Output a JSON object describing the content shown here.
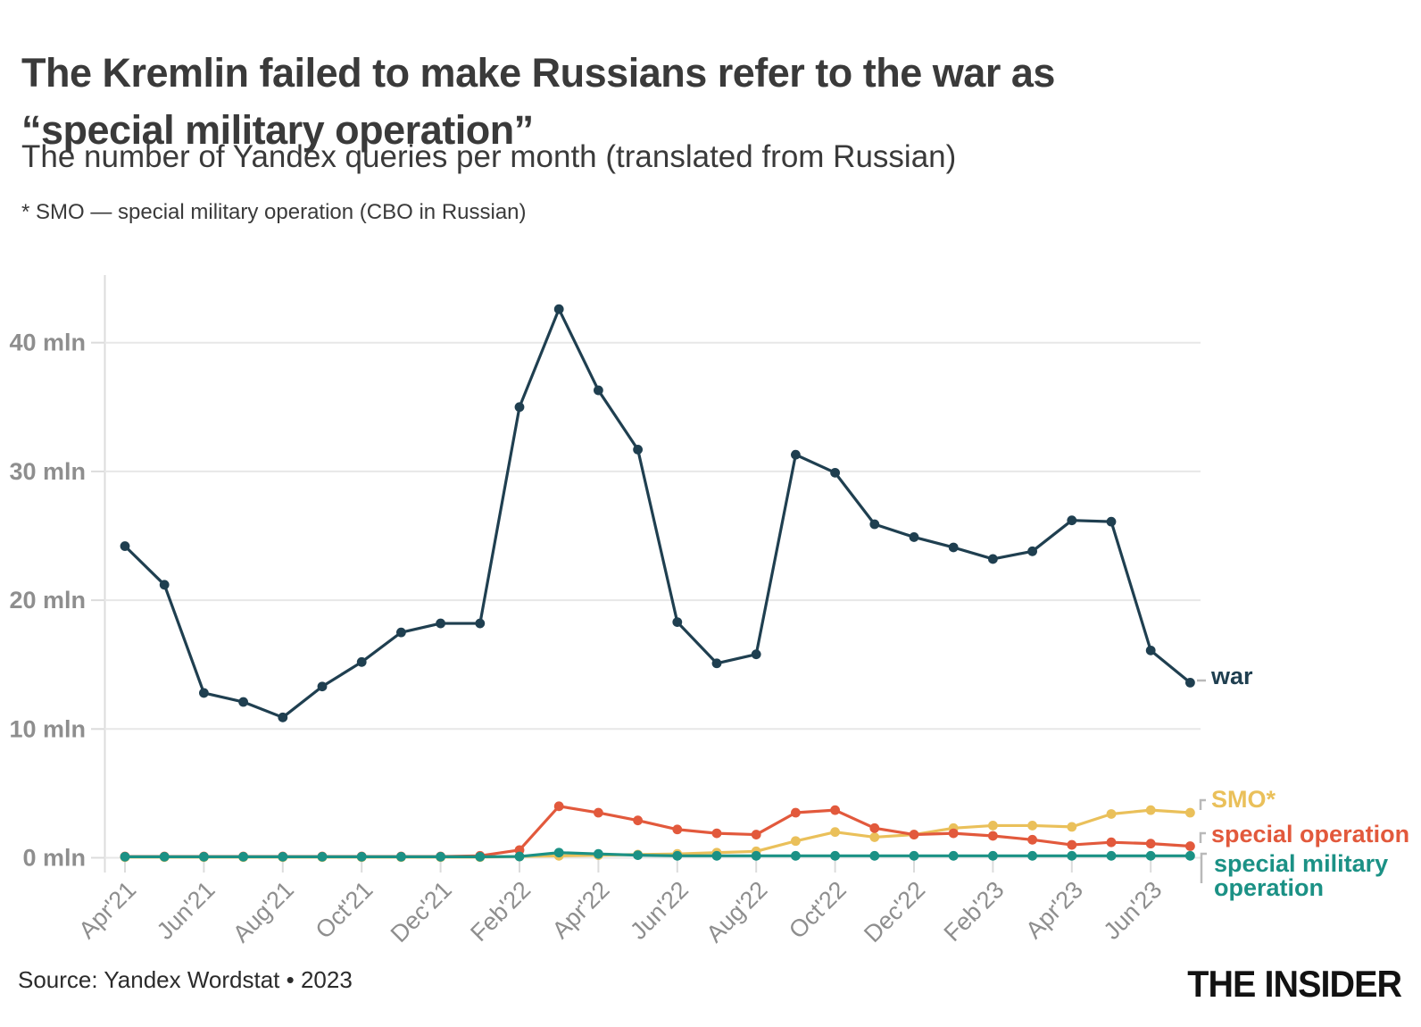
{
  "header": {
    "title_line1": "The Kremlin failed to make Russians refer to the war as",
    "title_line2": "“special military operation”",
    "subtitle": "The number of Yandex queries per month (translated from Russian)",
    "footnote": "* SMO — special military operation (CBO in Russian)"
  },
  "footer": {
    "source": "Source: Yandex Wordstat • 2023",
    "logo": "THE INSIDER"
  },
  "chart_data": {
    "type": "line",
    "x": [
      "Apr'21",
      "May'21",
      "Jun'21",
      "Jul'21",
      "Aug'21",
      "Sep'21",
      "Oct'21",
      "Nov'21",
      "Dec'21",
      "Jan'22",
      "Feb'22",
      "Mar'22",
      "Apr'22",
      "May'22",
      "Jun'22",
      "Jul'22",
      "Aug'22",
      "Sep'22",
      "Oct'22",
      "Nov'22",
      "Dec'22",
      "Jan'23",
      "Feb'23",
      "Mar'23",
      "Apr'23",
      "May'23",
      "Jun'23",
      "Jul'23"
    ],
    "x_tick_labels": [
      "Apr'21",
      "Jun'21",
      "Aug'21",
      "Oct'21",
      "Dec'21",
      "Feb'22",
      "Apr'22",
      "Jun'22",
      "Aug'22",
      "Oct'22",
      "Dec'22",
      "Feb'23",
      "Apr'23",
      "Jun'23"
    ],
    "y_ticks": [
      0,
      10,
      20,
      30,
      40
    ],
    "y_tick_labels": [
      "0 mln",
      "10 mln",
      "20 mln",
      "30 mln",
      "40 mln"
    ],
    "ylim": [
      0,
      45
    ],
    "unit": "mln queries per month",
    "grid": "horizontal",
    "grid_color": "#e7e7e7",
    "axis_color": "#dcdcdc",
    "tick_label_color": "#8e8e8e",
    "legend_position": "right of line ends",
    "connector_color": "#b9b9b9",
    "series": [
      {
        "id": "war",
        "label": "war",
        "color": "#1f3f50",
        "values": [
          24.2,
          21.2,
          12.8,
          12.1,
          10.9,
          13.3,
          15.2,
          17.5,
          18.2,
          18.2,
          35.0,
          42.6,
          36.3,
          31.7,
          18.3,
          15.1,
          15.8,
          31.3,
          29.9,
          25.9,
          24.9,
          24.1,
          23.2,
          23.8,
          26.2,
          26.1,
          16.1,
          13.6
        ]
      },
      {
        "id": "smo",
        "label": "SMO*",
        "color": "#eac05a",
        "values": [
          0.05,
          0.05,
          0.05,
          0.05,
          0.05,
          0.05,
          0.05,
          0.05,
          0.05,
          0.05,
          0.1,
          0.15,
          0.2,
          0.25,
          0.3,
          0.4,
          0.5,
          1.3,
          2.0,
          1.6,
          1.8,
          2.3,
          2.5,
          2.5,
          2.4,
          3.4,
          3.7,
          3.5
        ]
      },
      {
        "id": "special-operation",
        "label": "special operation",
        "color": "#e2593c",
        "values": [
          0.1,
          0.1,
          0.1,
          0.1,
          0.1,
          0.1,
          0.1,
          0.1,
          0.1,
          0.15,
          0.6,
          4.0,
          3.5,
          2.9,
          2.2,
          1.9,
          1.8,
          3.5,
          3.7,
          2.3,
          1.8,
          1.9,
          1.7,
          1.4,
          1.0,
          1.2,
          1.1,
          0.9
        ]
      },
      {
        "id": "special-military-operation",
        "label": "special military operation",
        "color": "#1b9185",
        "values": [
          0.08,
          0.08,
          0.08,
          0.08,
          0.08,
          0.08,
          0.08,
          0.08,
          0.08,
          0.08,
          0.1,
          0.4,
          0.3,
          0.2,
          0.15,
          0.15,
          0.15,
          0.15,
          0.15,
          0.15,
          0.15,
          0.15,
          0.15,
          0.15,
          0.15,
          0.15,
          0.15,
          0.15
        ]
      }
    ]
  }
}
